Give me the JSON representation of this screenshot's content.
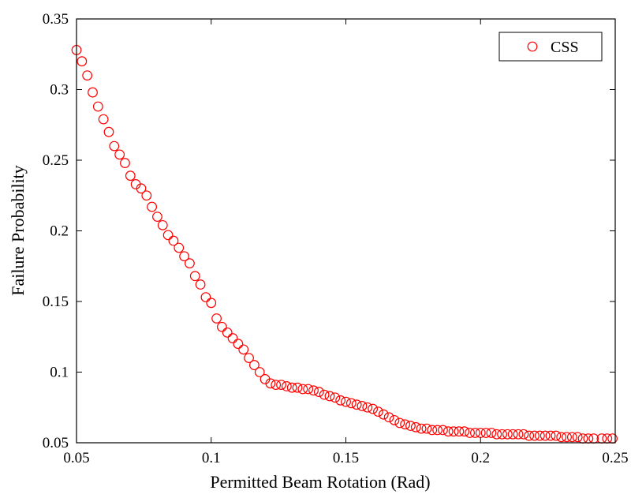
{
  "chart_data": {
    "type": "scatter",
    "xlabel": "Permitted Beam Rotation (Rad)",
    "ylabel": "Failure Probability",
    "xlim": [
      0.05,
      0.25
    ],
    "ylim": [
      0.05,
      0.35
    ],
    "xticks": [
      "0.05",
      "0.1",
      "0.15",
      "0.2",
      "0.25"
    ],
    "yticks": [
      "0.05",
      "0.1",
      "0.15",
      "0.2",
      "0.25",
      "0.3",
      "0.35"
    ],
    "grid": false,
    "legend_position": "top-right",
    "marker": "open-circle",
    "colors": {
      "series": "#ff0000",
      "axis": "#000000"
    },
    "series": [
      {
        "name": "CSS",
        "x": [
          0.05,
          0.052,
          0.054,
          0.056,
          0.058,
          0.06,
          0.062,
          0.064,
          0.066,
          0.068,
          0.07,
          0.072,
          0.074,
          0.076,
          0.078,
          0.08,
          0.082,
          0.084,
          0.086,
          0.088,
          0.09,
          0.092,
          0.094,
          0.096,
          0.098,
          0.1,
          0.102,
          0.104,
          0.106,
          0.108,
          0.11,
          0.112,
          0.114,
          0.116,
          0.118,
          0.12,
          0.122,
          0.124,
          0.126,
          0.128,
          0.13,
          0.132,
          0.134,
          0.136,
          0.138,
          0.14,
          0.142,
          0.144,
          0.146,
          0.148,
          0.15,
          0.152,
          0.154,
          0.156,
          0.158,
          0.16,
          0.162,
          0.164,
          0.166,
          0.168,
          0.17,
          0.172,
          0.174,
          0.176,
          0.178,
          0.18,
          0.182,
          0.184,
          0.186,
          0.188,
          0.19,
          0.192,
          0.194,
          0.196,
          0.198,
          0.2,
          0.202,
          0.204,
          0.206,
          0.208,
          0.21,
          0.212,
          0.214,
          0.216,
          0.218,
          0.22,
          0.222,
          0.224,
          0.226,
          0.228,
          0.23,
          0.232,
          0.234,
          0.236,
          0.238,
          0.24,
          0.242,
          0.245,
          0.247,
          0.249
        ],
        "y": [
          0.328,
          0.32,
          0.31,
          0.298,
          0.288,
          0.279,
          0.27,
          0.26,
          0.254,
          0.248,
          0.239,
          0.233,
          0.23,
          0.225,
          0.217,
          0.21,
          0.204,
          0.197,
          0.193,
          0.188,
          0.182,
          0.177,
          0.168,
          0.162,
          0.153,
          0.149,
          0.138,
          0.132,
          0.128,
          0.124,
          0.12,
          0.116,
          0.11,
          0.105,
          0.1,
          0.095,
          0.092,
          0.091,
          0.091,
          0.09,
          0.089,
          0.089,
          0.088,
          0.088,
          0.087,
          0.086,
          0.084,
          0.083,
          0.082,
          0.08,
          0.079,
          0.078,
          0.077,
          0.076,
          0.075,
          0.074,
          0.072,
          0.07,
          0.068,
          0.066,
          0.064,
          0.063,
          0.062,
          0.061,
          0.06,
          0.06,
          0.059,
          0.059,
          0.059,
          0.058,
          0.058,
          0.058,
          0.058,
          0.057,
          0.057,
          0.057,
          0.057,
          0.057,
          0.056,
          0.056,
          0.056,
          0.056,
          0.056,
          0.056,
          0.055,
          0.055,
          0.055,
          0.055,
          0.055,
          0.055,
          0.054,
          0.054,
          0.054,
          0.054,
          0.053,
          0.053,
          0.053,
          0.053,
          0.053,
          0.053
        ]
      }
    ]
  }
}
